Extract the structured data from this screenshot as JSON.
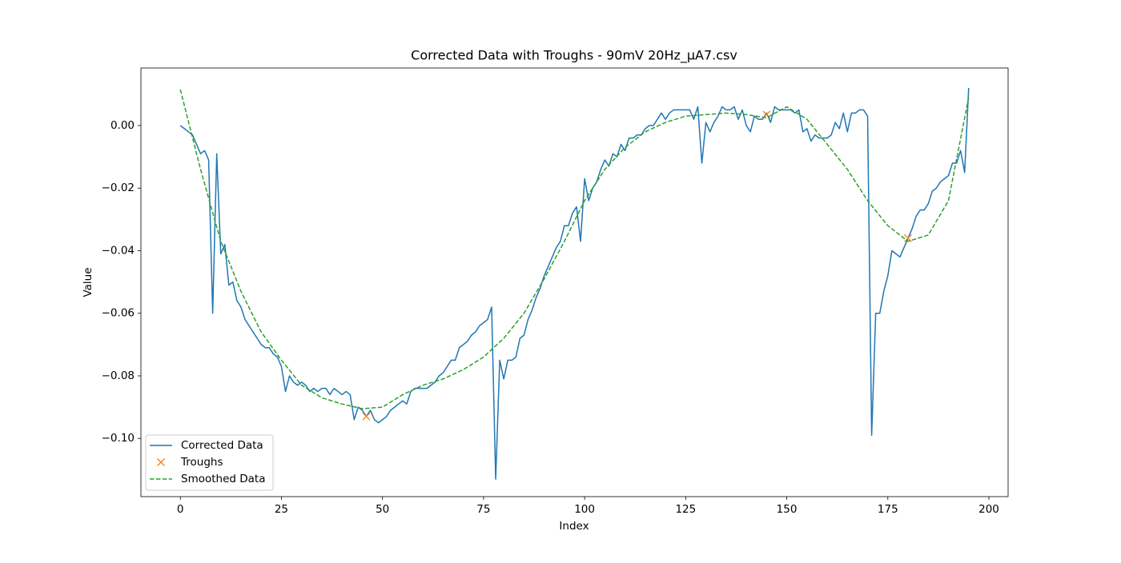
{
  "chart_data": {
    "type": "line",
    "title": "Corrected Data with Troughs - 90mV 20Hz_µA7.csv",
    "xlabel": "Index",
    "ylabel": "Value",
    "xlim": [
      -9.75,
      204.75
    ],
    "ylim": [
      -0.1186,
      0.0184
    ],
    "xticks": [
      0,
      25,
      50,
      75,
      100,
      125,
      150,
      175,
      200
    ],
    "yticks": [
      {
        "value": -0.1,
        "label": "−0.10"
      },
      {
        "value": -0.08,
        "label": "−0.08"
      },
      {
        "value": -0.06,
        "label": "−0.06"
      },
      {
        "value": -0.04,
        "label": "−0.04"
      },
      {
        "value": -0.02,
        "label": "−0.02"
      },
      {
        "value": 0,
        "label": "0.00"
      }
    ],
    "legend": "lower left",
    "series": [
      {
        "name": "Corrected Data",
        "color": "#1f77b4",
        "style": "solid",
        "x": [
          0,
          1,
          2,
          3,
          4,
          5,
          6,
          7,
          8,
          9,
          10,
          11,
          12,
          13,
          14,
          15,
          16,
          17,
          18,
          19,
          20,
          21,
          22,
          23,
          24,
          25,
          26,
          27,
          28,
          29,
          30,
          31,
          32,
          33,
          34,
          35,
          36,
          37,
          38,
          39,
          40,
          41,
          42,
          43,
          44,
          45,
          46,
          47,
          48,
          49,
          50,
          51,
          52,
          53,
          54,
          55,
          56,
          57,
          58,
          59,
          60,
          61,
          62,
          63,
          64,
          65,
          66,
          67,
          68,
          69,
          70,
          71,
          72,
          73,
          74,
          75,
          76,
          77,
          78,
          79,
          80,
          81,
          82,
          83,
          84,
          85,
          86,
          87,
          88,
          89,
          90,
          91,
          92,
          93,
          94,
          95,
          96,
          97,
          98,
          99,
          100,
          101,
          102,
          103,
          104,
          105,
          106,
          107,
          108,
          109,
          110,
          111,
          112,
          113,
          114,
          115,
          116,
          117,
          118,
          119,
          120,
          121,
          122,
          123,
          124,
          125,
          126,
          127,
          128,
          129,
          130,
          131,
          132,
          133,
          134,
          135,
          136,
          137,
          138,
          139,
          140,
          141,
          142,
          143,
          144,
          145,
          146,
          147,
          148,
          149,
          150,
          151,
          152,
          153,
          154,
          155,
          156,
          157,
          158,
          159,
          160,
          161,
          162,
          163,
          164,
          165,
          166,
          167,
          168,
          169,
          170,
          171,
          172,
          173,
          174,
          175,
          176,
          177,
          178,
          179,
          180,
          181,
          182,
          183,
          184,
          185,
          186,
          187,
          188,
          189,
          190,
          191,
          192,
          193,
          194,
          195
        ],
        "values": [
          0.0,
          -0.001,
          -0.002,
          -0.003,
          -0.006,
          -0.009,
          -0.008,
          -0.011,
          -0.06,
          -0.009,
          -0.041,
          -0.038,
          -0.051,
          -0.05,
          -0.056,
          -0.058,
          -0.062,
          -0.064,
          -0.066,
          -0.068,
          -0.07,
          -0.071,
          -0.071,
          -0.073,
          -0.074,
          -0.077,
          -0.085,
          -0.08,
          -0.082,
          -0.083,
          -0.082,
          -0.083,
          -0.085,
          -0.084,
          -0.085,
          -0.084,
          -0.084,
          -0.086,
          -0.084,
          -0.085,
          -0.086,
          -0.085,
          -0.086,
          -0.094,
          -0.09,
          -0.091,
          -0.093,
          -0.091,
          -0.094,
          -0.095,
          -0.094,
          -0.093,
          -0.091,
          -0.09,
          -0.089,
          -0.088,
          -0.089,
          -0.085,
          -0.084,
          -0.084,
          -0.084,
          -0.084,
          -0.083,
          -0.082,
          -0.08,
          -0.079,
          -0.077,
          -0.075,
          -0.075,
          -0.071,
          -0.07,
          -0.069,
          -0.067,
          -0.066,
          -0.064,
          -0.063,
          -0.062,
          -0.058,
          -0.113,
          -0.075,
          -0.081,
          -0.075,
          -0.075,
          -0.074,
          -0.068,
          -0.067,
          -0.062,
          -0.059,
          -0.055,
          -0.052,
          -0.048,
          -0.045,
          -0.042,
          -0.039,
          -0.037,
          -0.032,
          -0.032,
          -0.028,
          -0.026,
          -0.037,
          -0.017,
          -0.024,
          -0.02,
          -0.018,
          -0.014,
          -0.011,
          -0.013,
          -0.009,
          -0.01,
          -0.006,
          -0.008,
          -0.004,
          -0.004,
          -0.003,
          -0.003,
          -0.001,
          0.0,
          0.0,
          0.002,
          0.004,
          0.002,
          0.004,
          0.005,
          0.005,
          0.005,
          0.005,
          0.005,
          0.002,
          0.006,
          -0.012,
          0.001,
          -0.002,
          0.001,
          0.003,
          0.006,
          0.005,
          0.005,
          0.006,
          0.002,
          0.005,
          0.0,
          -0.002,
          0.003,
          0.002,
          0.002,
          0.004,
          0.001,
          0.006,
          0.005,
          0.005,
          0.005,
          0.005,
          0.004,
          0.005,
          -0.002,
          -0.001,
          -0.005,
          -0.003,
          -0.004,
          -0.004,
          -0.004,
          -0.003,
          0.001,
          -0.001,
          0.004,
          -0.002,
          0.004,
          0.004,
          0.005,
          0.005,
          0.003,
          -0.099,
          -0.06,
          -0.06,
          -0.053,
          -0.048,
          -0.04,
          -0.041,
          -0.042,
          -0.039,
          -0.036,
          -0.033,
          -0.029,
          -0.027,
          -0.027,
          -0.025,
          -0.021,
          -0.02,
          -0.018,
          -0.017,
          -0.016,
          -0.012,
          -0.012,
          -0.008,
          -0.015,
          0.012
        ]
      },
      {
        "name": "Troughs",
        "color": "#ff7f0e",
        "style": "x",
        "x": [
          46,
          145,
          180
        ],
        "values": [
          -0.093,
          0.0035,
          -0.036
        ]
      },
      {
        "name": "Smoothed Data",
        "color": "#2ca02c",
        "style": "dashed",
        "x": [
          0,
          5,
          10,
          15,
          20,
          25,
          30,
          35,
          40,
          45,
          50,
          55,
          60,
          65,
          70,
          75,
          80,
          85,
          90,
          95,
          100,
          105,
          110,
          115,
          120,
          125,
          130,
          135,
          140,
          145,
          150,
          155,
          160,
          165,
          170,
          175,
          180,
          185,
          190,
          195
        ],
        "values": [
          0.0115,
          -0.014,
          -0.037,
          -0.053,
          -0.066,
          -0.075,
          -0.083,
          -0.087,
          -0.089,
          -0.0905,
          -0.09,
          -0.086,
          -0.083,
          -0.081,
          -0.078,
          -0.074,
          -0.068,
          -0.06,
          -0.049,
          -0.037,
          -0.024,
          -0.014,
          -0.007,
          -0.002,
          0.001,
          0.003,
          0.0035,
          0.004,
          0.0035,
          0.0025,
          0.006,
          0.002,
          -0.006,
          -0.014,
          -0.024,
          -0.032,
          -0.037,
          -0.035,
          -0.024,
          0.009
        ]
      }
    ]
  }
}
